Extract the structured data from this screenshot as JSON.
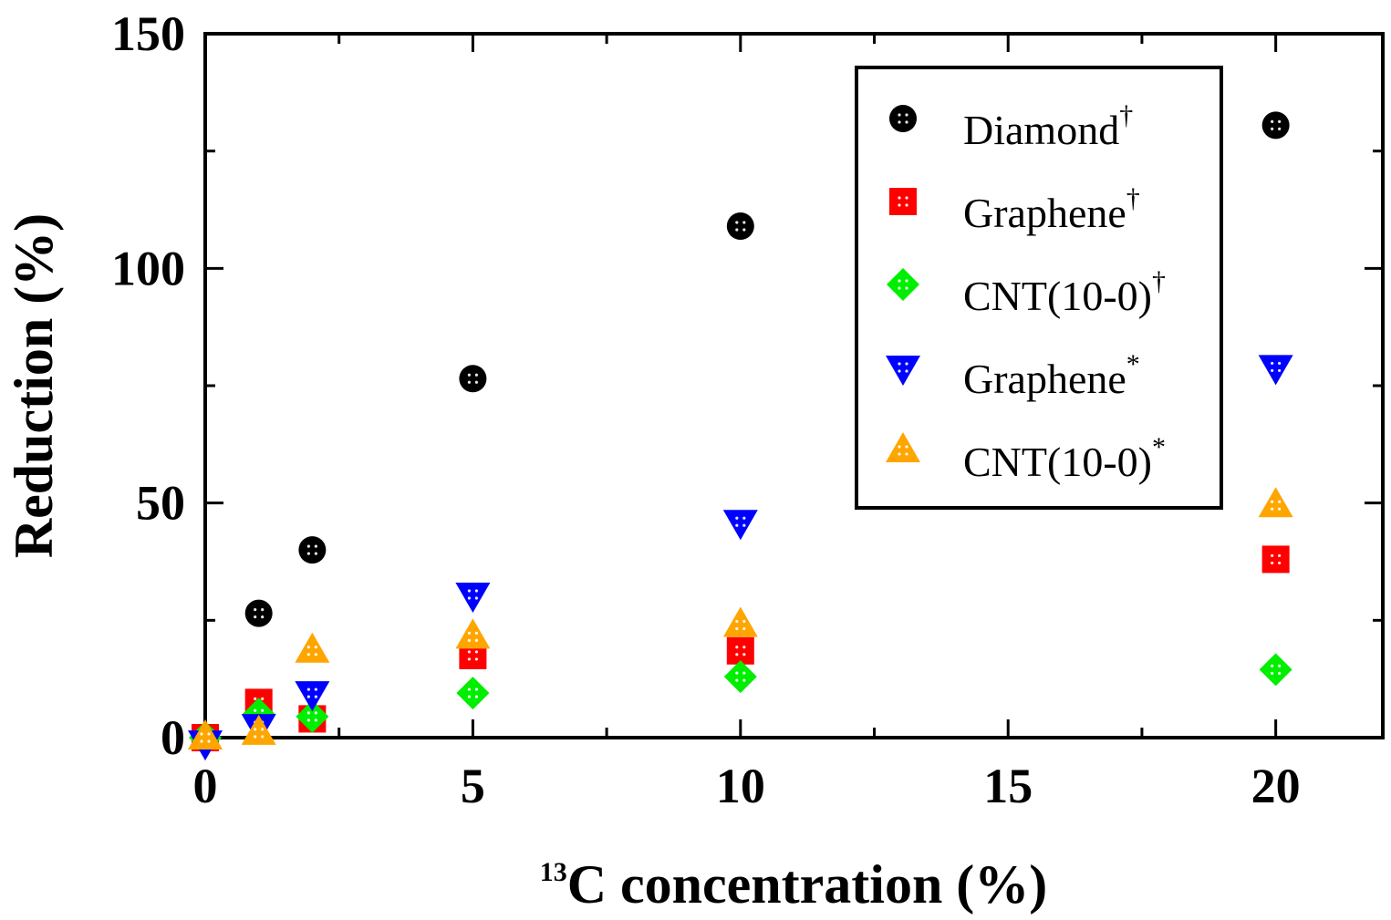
{
  "chart_data": {
    "type": "scatter",
    "title": "",
    "xlabel_sup": "13",
    "xlabel": "C concentration (%)",
    "ylabel": "Reduction (%)",
    "xlim": [
      0,
      22
    ],
    "ylim": [
      0,
      150
    ],
    "xticks": [
      0,
      5,
      10,
      15,
      20
    ],
    "yticks": [
      0,
      50,
      100,
      150
    ],
    "grid": false,
    "legend_position": "top-right",
    "series": [
      {
        "name": "Diamond",
        "mark": "†",
        "marker": "circle",
        "color": "#000000",
        "x": [
          1,
          2,
          5,
          10,
          20
        ],
        "y": [
          26.5,
          40,
          76.5,
          109,
          130.5
        ]
      },
      {
        "name": "Graphene",
        "mark": "†",
        "marker": "square",
        "color": "#ff0000",
        "x": [
          0,
          1,
          2,
          5,
          10,
          20
        ],
        "y": [
          0,
          7.5,
          4,
          17.5,
          18.5,
          38
        ]
      },
      {
        "name": "CNT(10-0)",
        "mark": "†",
        "marker": "diamond",
        "color": "#00ee00",
        "x": [
          0,
          1,
          2,
          5,
          10,
          20
        ],
        "y": [
          0,
          5,
          4.5,
          9.5,
          13,
          14.5
        ]
      },
      {
        "name": "Graphene",
        "mark": "*",
        "marker": "triangle-down",
        "color": "#0000ff",
        "x": [
          0,
          1,
          2,
          5,
          10,
          20
        ],
        "y": [
          -1,
          2.5,
          9.5,
          30.5,
          46,
          79
        ]
      },
      {
        "name": "CNT(10-0)",
        "mark": "*",
        "marker": "triangle-up",
        "color": "#ffa500",
        "x": [
          0,
          1,
          2,
          5,
          10,
          20
        ],
        "y": [
          0,
          1,
          18.5,
          21.5,
          24,
          49.5
        ]
      }
    ]
  }
}
